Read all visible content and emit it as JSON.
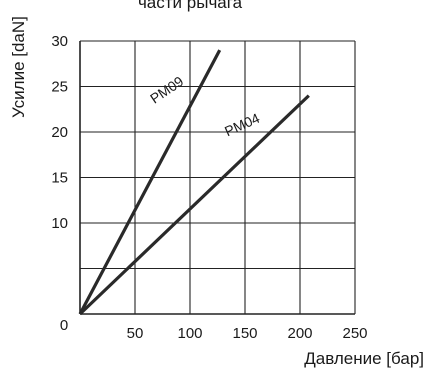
{
  "chart_data": {
    "type": "line",
    "title": "части рычага",
    "xlabel": "Давление [бар]",
    "ylabel": "Усилие [daN]",
    "xlim": [
      0,
      250
    ],
    "ylim": [
      0,
      30
    ],
    "x_ticks": [
      0,
      50,
      100,
      150,
      200,
      250
    ],
    "y_ticks": [
      10,
      15,
      20,
      25,
      30
    ],
    "grid": true,
    "series": [
      {
        "name": "PM09",
        "x": [
          0,
          127
        ],
        "y": [
          0,
          29
        ]
      },
      {
        "name": "PM04",
        "x": [
          0,
          208
        ],
        "y": [
          0,
          24
        ]
      }
    ]
  },
  "colors": {
    "line": "#2a2a2a",
    "grid": "#222222"
  }
}
